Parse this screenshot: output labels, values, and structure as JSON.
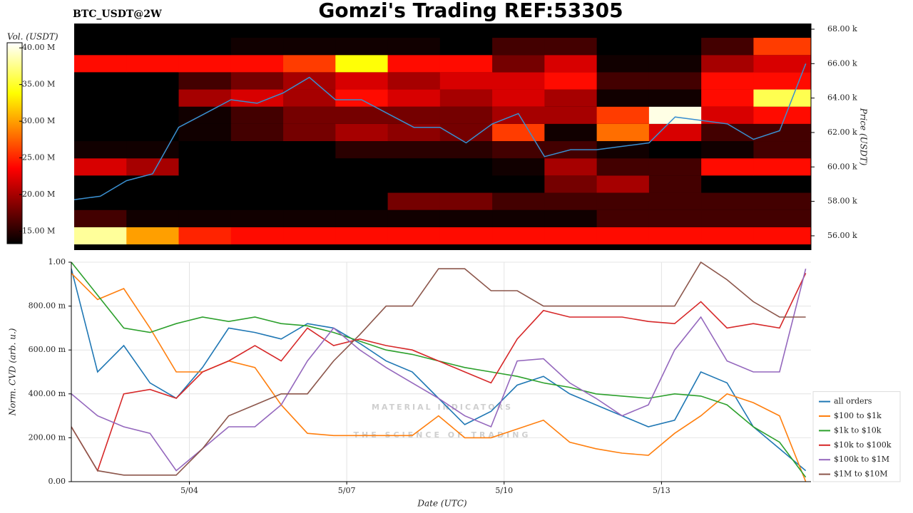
{
  "chart_data": [
    {
      "type": "heatmap",
      "title": "Gomzi's Trading REF:53305",
      "subtitle": "BTC_USDT@2W",
      "xlim": [
        1.75,
        15.85
      ],
      "x_bins": [
        1.75,
        2.75,
        3.75,
        4.75,
        5.75,
        6.75,
        7.75,
        8.75,
        9.75,
        10.75,
        11.75,
        12.75,
        13.75,
        14.75,
        15.85
      ],
      "y_bins": [
        55.5,
        56.5,
        57.5,
        58.5,
        59.5,
        60.5,
        61.5,
        62.5,
        63.5,
        64.5,
        65.5,
        66.5,
        67.5
      ],
      "z": [
        [
          38,
          30,
          25,
          24,
          24,
          24,
          24,
          24,
          24,
          24,
          24,
          24,
          24,
          24
        ],
        [
          16,
          14,
          14,
          14,
          14,
          14,
          14,
          14,
          14,
          14,
          16,
          16,
          16,
          16
        ],
        [
          12,
          12,
          12,
          12,
          12,
          12,
          18,
          18,
          16,
          16,
          16,
          16,
          16,
          16
        ],
        [
          12,
          12,
          12,
          12,
          12,
          12,
          12,
          12,
          12,
          18,
          20,
          16,
          12,
          12
        ],
        [
          22,
          20,
          12,
          12,
          12,
          12,
          12,
          12,
          14,
          20,
          16,
          16,
          24,
          24
        ],
        [
          14,
          14,
          12,
          12,
          13,
          15,
          15,
          15,
          16,
          16,
          14,
          13,
          14,
          16
        ],
        [
          12,
          12,
          14,
          16,
          18,
          20,
          19,
          18,
          26,
          14,
          28,
          22,
          16,
          16
        ],
        [
          12,
          12,
          14,
          16,
          18,
          18,
          18,
          18,
          20,
          20,
          26,
          40,
          22,
          24
        ],
        [
          12,
          12,
          20,
          22,
          20,
          24,
          22,
          20,
          22,
          20,
          14,
          14,
          24,
          36
        ],
        [
          12,
          12,
          16,
          18,
          20,
          22,
          20,
          22,
          22,
          24,
          16,
          16,
          24,
          24
        ],
        [
          24,
          24,
          24,
          24,
          26,
          34,
          24,
          24,
          18,
          22,
          14,
          14,
          20,
          22
        ],
        [
          12,
          12,
          12,
          14,
          14,
          14,
          14,
          12,
          16,
          16,
          12,
          12,
          16,
          26
        ]
      ],
      "colormap": "hot",
      "zlim": [
        13.3,
        40.7
      ],
      "zticks": [
        {
          "value": 15,
          "label": "15.00 M"
        },
        {
          "value": 20,
          "label": "20.00 M"
        },
        {
          "value": 25,
          "label": "25.00 M"
        },
        {
          "value": 30,
          "label": "30.00 M"
        },
        {
          "value": 35,
          "label": "35.00 M"
        },
        {
          "value": 40,
          "label": "40.00 M"
        }
      ],
      "colorbar_label": "Vol. (USDT)",
      "ylim": [
        55.17,
        68.33
      ],
      "yticks": [
        {
          "value": 56,
          "label": "56.00 k"
        },
        {
          "value": 58,
          "label": "58.00 k"
        },
        {
          "value": 60,
          "label": "60.00 k"
        },
        {
          "value": 62,
          "label": "62.00 k"
        },
        {
          "value": 64,
          "label": "64.00 k"
        },
        {
          "value": 66,
          "label": "66.00 k"
        },
        {
          "value": 68,
          "label": "68.00 k"
        }
      ],
      "ylabel": "Price (USDT)",
      "price": {
        "color": "#3a8fd0",
        "x": [
          1.75,
          2.25,
          2.75,
          3.25,
          3.75,
          4.25,
          4.75,
          5.25,
          5.75,
          6.25,
          6.75,
          7.25,
          7.75,
          8.25,
          8.75,
          9.25,
          9.75,
          10.25,
          10.75,
          11.25,
          11.75,
          12.25,
          12.75,
          13.25,
          13.75,
          14.25,
          14.75,
          15.25,
          15.75
        ],
        "values": [
          58.1,
          58.3,
          59.2,
          59.6,
          62.3,
          63.1,
          63.9,
          63.7,
          64.3,
          65.2,
          63.9,
          63.9,
          63.1,
          62.3,
          62.3,
          61.4,
          62.5,
          63.1,
          60.6,
          61.0,
          61.0,
          61.2,
          61.4,
          62.9,
          62.7,
          62.5,
          61.6,
          62.1,
          66.0
        ]
      }
    },
    {
      "type": "line",
      "xlabel": "Date (UTC)",
      "ylabel": "Norm. CVD (arb. u.)",
      "xlim": [
        1.75,
        15.85
      ],
      "xticks": [
        {
          "value": 4,
          "label": "5/04"
        },
        {
          "value": 7,
          "label": "5/07"
        },
        {
          "value": 10,
          "label": "5/10"
        },
        {
          "value": 13,
          "label": "5/13"
        }
      ],
      "ylim": [
        0,
        1
      ],
      "yticks": [
        {
          "value": 0,
          "label": "0.00"
        },
        {
          "value": 0.2,
          "label": "200.00 m"
        },
        {
          "value": 0.4,
          "label": "400.00 m"
        },
        {
          "value": 0.6,
          "label": "600.00 m"
        },
        {
          "value": 0.8,
          "label": "800.00 m"
        },
        {
          "value": 1,
          "label": "1.00"
        }
      ],
      "grid": true,
      "legend": "lower right",
      "watermark": [
        "MATERIAL INDICATORS",
        "THE SCIENCE OF TRADING"
      ],
      "x": [
        1.75,
        2.25,
        2.75,
        3.25,
        3.75,
        4.25,
        4.75,
        5.25,
        5.75,
        6.25,
        6.75,
        7.25,
        7.75,
        8.25,
        8.75,
        9.25,
        9.75,
        10.25,
        10.75,
        11.25,
        11.75,
        12.25,
        12.75,
        13.25,
        13.75,
        14.25,
        14.75,
        15.25,
        15.75
      ],
      "series": [
        {
          "name": "all orders",
          "color": "#1f77b4",
          "values": [
            0.97,
            0.5,
            0.62,
            0.45,
            0.38,
            0.52,
            0.7,
            0.68,
            0.65,
            0.72,
            0.7,
            0.63,
            0.55,
            0.5,
            0.38,
            0.26,
            0.32,
            0.44,
            0.48,
            0.4,
            0.35,
            0.3,
            0.25,
            0.28,
            0.5,
            0.45,
            0.25,
            0.15,
            0.05
          ]
        },
        {
          "name": "$100 to $1k",
          "color": "#ff7f0e",
          "values": [
            0.95,
            0.83,
            0.88,
            0.7,
            0.5,
            0.5,
            0.55,
            0.52,
            0.35,
            0.22,
            0.21,
            0.21,
            0.21,
            0.21,
            0.3,
            0.2,
            0.2,
            0.24,
            0.28,
            0.18,
            0.15,
            0.13,
            0.12,
            0.22,
            0.3,
            0.4,
            0.36,
            0.3,
            0.0
          ]
        },
        {
          "name": "$1k to $10k",
          "color": "#2ca02c",
          "values": [
            1.0,
            0.85,
            0.7,
            0.68,
            0.72,
            0.75,
            0.73,
            0.75,
            0.72,
            0.71,
            0.68,
            0.64,
            0.6,
            0.58,
            0.55,
            0.52,
            0.5,
            0.48,
            0.45,
            0.43,
            0.4,
            0.39,
            0.38,
            0.4,
            0.39,
            0.35,
            0.25,
            0.18,
            0.02
          ]
        },
        {
          "name": "$10k to $100k",
          "color": "#d62728",
          "values": [
            0.25,
            0.05,
            0.4,
            0.42,
            0.38,
            0.5,
            0.55,
            0.62,
            0.55,
            0.7,
            0.62,
            0.65,
            0.62,
            0.6,
            0.55,
            0.5,
            0.45,
            0.65,
            0.78,
            0.75,
            0.75,
            0.75,
            0.73,
            0.72,
            0.82,
            0.7,
            0.72,
            0.7,
            0.95
          ]
        },
        {
          "name": "$100k to $1M",
          "color": "#9467bd",
          "values": [
            0.4,
            0.3,
            0.25,
            0.22,
            0.05,
            0.15,
            0.25,
            0.25,
            0.35,
            0.55,
            0.7,
            0.6,
            0.52,
            0.45,
            0.38,
            0.3,
            0.25,
            0.55,
            0.56,
            0.45,
            0.38,
            0.3,
            0.35,
            0.6,
            0.75,
            0.55,
            0.5,
            0.5,
            0.97
          ]
        },
        {
          "name": "$1M to $10M",
          "color": "#8c564b",
          "values": [
            0.25,
            0.05,
            0.03,
            0.03,
            0.03,
            0.15,
            0.3,
            0.35,
            0.4,
            0.4,
            0.55,
            0.67,
            0.8,
            0.8,
            0.97,
            0.97,
            0.87,
            0.87,
            0.8,
            0.8,
            0.8,
            0.8,
            0.8,
            0.8,
            1.0,
            0.92,
            0.82,
            0.75,
            0.75
          ]
        }
      ]
    }
  ]
}
